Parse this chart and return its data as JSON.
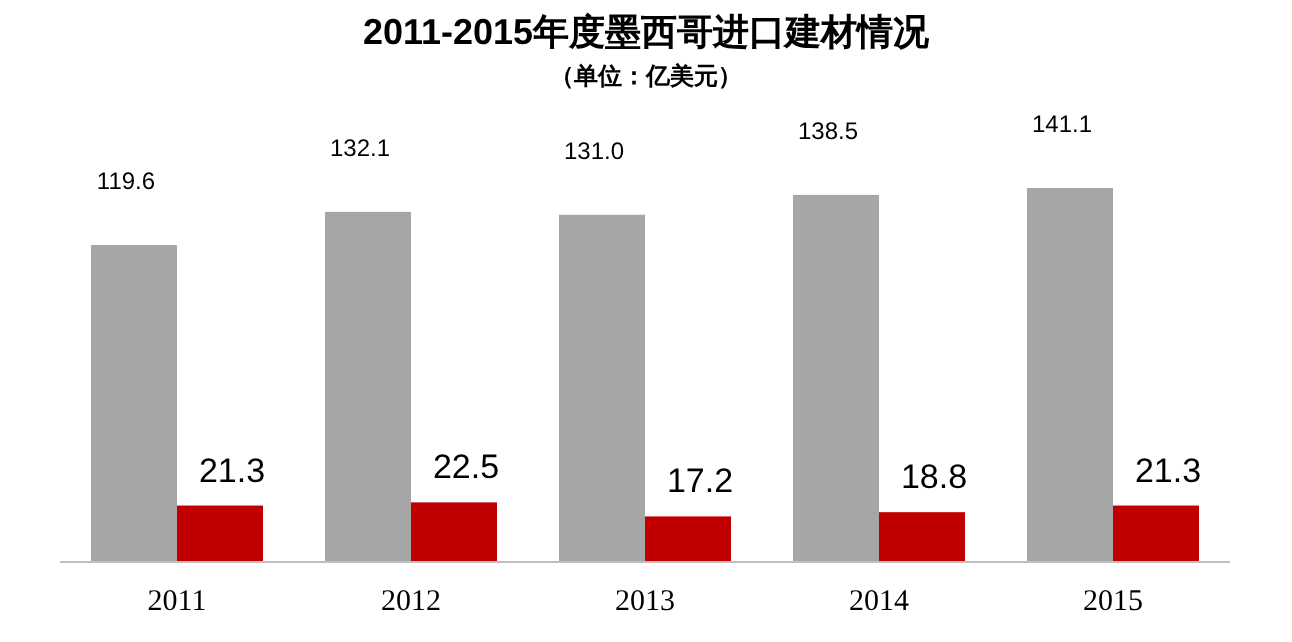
{
  "chart_data": {
    "type": "bar",
    "title": "2011-2015年度墨西哥进口建材情况",
    "subtitle": "（单位：亿美元）",
    "categories": [
      "2011",
      "2012",
      "2013",
      "2014",
      "2015"
    ],
    "series": [
      {
        "color": "#a6a6a6",
        "values": [
          119.6,
          132.1,
          131.0,
          138.5,
          141.1
        ],
        "value_labels": [
          "119.6",
          "132.1",
          "131.0",
          "138.5",
          "141.1"
        ]
      },
      {
        "color": "#c00000",
        "values": [
          21.3,
          22.5,
          17.2,
          18.8,
          21.3
        ],
        "value_labels": [
          "21.3",
          "22.5",
          "17.2",
          "18.8",
          "21.3"
        ]
      }
    ]
  }
}
